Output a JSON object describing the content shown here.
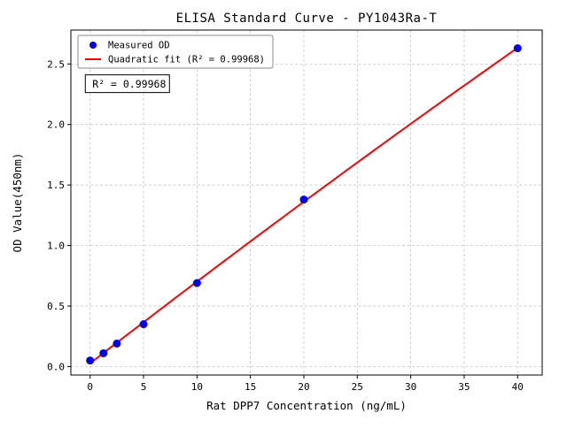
{
  "chart_data": {
    "type": "scatter",
    "title": "ELISA Standard Curve - PY1043Ra-T",
    "xlabel": "Rat DPP7 Concentration (ng/mL)",
    "ylabel": "OD Value(450nm)",
    "xlim": [
      -1.8,
      42.3
    ],
    "ylim": [
      -0.07,
      2.78
    ],
    "grid": true,
    "legend_position": "upper-left",
    "xticks": {
      "values": [
        0,
        5,
        10,
        15,
        20,
        25,
        30,
        35,
        40
      ],
      "labels": [
        "0",
        "5",
        "10",
        "15",
        "20",
        "25",
        "30",
        "35",
        "40"
      ]
    },
    "yticks": {
      "values": [
        0,
        0.5,
        1.0,
        1.5,
        2.0,
        2.5
      ],
      "labels": [
        "0.0",
        "0.5",
        "1.0",
        "1.5",
        "2.0",
        "2.5"
      ]
    },
    "series": [
      {
        "name": "Measured OD",
        "kind": "scatter",
        "color": "#0000EE",
        "x": [
          0,
          1.25,
          2.5,
          5,
          10,
          20,
          40
        ],
        "y": [
          0.05,
          0.11,
          0.19,
          0.35,
          0.69,
          1.38,
          2.63
        ]
      },
      {
        "name": "Quadratic fit (R² = 0.99968)",
        "kind": "line",
        "color": "#FF0000",
        "fit": "quadratic",
        "r_squared": 0.99968
      }
    ],
    "annotation": {
      "text": "R² = 0.99968",
      "x": -0.45,
      "y": 2.41
    }
  }
}
